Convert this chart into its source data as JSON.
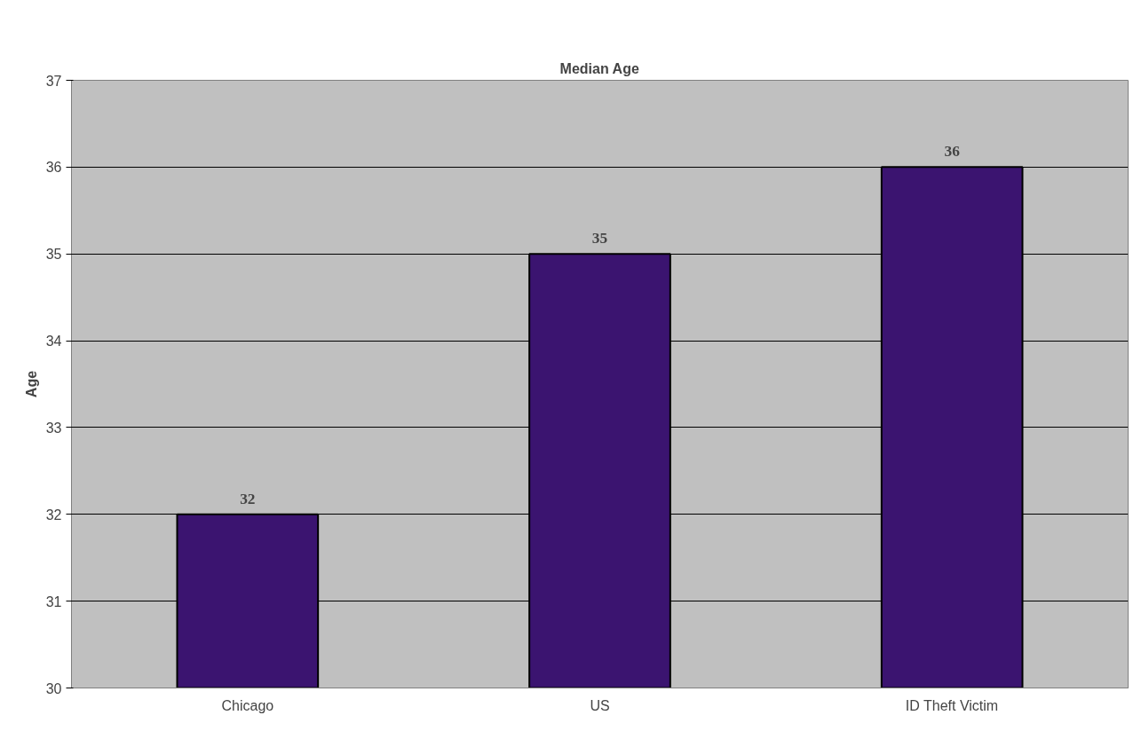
{
  "chart_data": {
    "type": "bar",
    "title": "Median Age",
    "ylabel": "Age",
    "categories": [
      "Chicago",
      "US",
      "ID Theft Victim"
    ],
    "values": [
      32,
      35,
      36
    ],
    "color": "#3b1470",
    "ylim": [
      30,
      37
    ],
    "yticks": [
      30,
      31,
      32,
      33,
      34,
      35,
      36,
      37
    ],
    "grid": "y",
    "data_labels": true
  }
}
